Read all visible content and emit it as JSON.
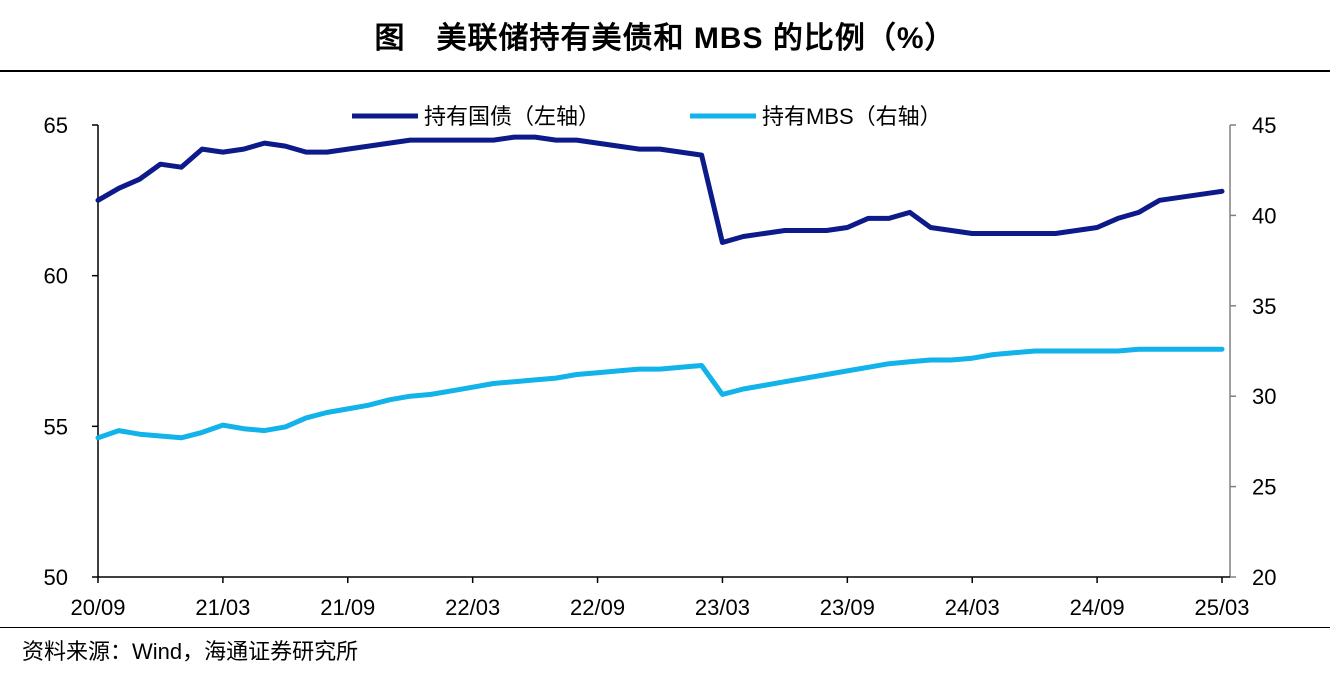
{
  "title": "图　美联储持有美债和 MBS 的比例（%）",
  "source": "资料来源：Wind，海通证券研究所",
  "colors": {
    "treasury": "#0d1a8a",
    "mbs": "#12b2ea",
    "axis": "#000000",
    "right_axis": "#808080"
  },
  "chart_data": {
    "type": "line",
    "title": "美联储持有美债和 MBS 的比例（%）",
    "x": [
      "20/09",
      "20/10",
      "20/11",
      "20/12",
      "21/01",
      "21/02",
      "21/03",
      "21/04",
      "21/05",
      "21/06",
      "21/07",
      "21/08",
      "21/09",
      "21/10",
      "21/11",
      "21/12",
      "22/01",
      "22/02",
      "22/03",
      "22/04",
      "22/05",
      "22/06",
      "22/07",
      "22/08",
      "22/09",
      "22/10",
      "22/11",
      "22/12",
      "23/01",
      "23/02",
      "23/03",
      "23/04",
      "23/05",
      "23/06",
      "23/07",
      "23/08",
      "23/09",
      "23/10",
      "23/11",
      "23/12",
      "24/01",
      "24/02",
      "24/03",
      "24/04",
      "24/05",
      "24/06",
      "24/07",
      "24/08",
      "24/09",
      "24/10",
      "24/11",
      "24/12",
      "25/01",
      "25/02",
      "25/03"
    ],
    "x_ticks": [
      "20/09",
      "21/03",
      "21/09",
      "22/03",
      "22/09",
      "23/03",
      "23/09",
      "24/03",
      "24/09",
      "25/03"
    ],
    "series": [
      {
        "name": "持有国债（左轴）",
        "axis": "left",
        "values": [
          62.5,
          62.9,
          63.2,
          63.7,
          63.6,
          64.2,
          64.1,
          64.2,
          64.4,
          64.3,
          64.1,
          64.1,
          64.2,
          64.3,
          64.4,
          64.5,
          64.5,
          64.5,
          64.5,
          64.5,
          64.6,
          64.6,
          64.5,
          64.5,
          64.4,
          64.3,
          64.2,
          64.2,
          64.1,
          64.0,
          61.1,
          61.3,
          61.4,
          61.5,
          61.5,
          61.5,
          61.6,
          61.9,
          61.9,
          62.1,
          61.6,
          61.5,
          61.4,
          61.4,
          61.4,
          61.4,
          61.4,
          61.5,
          61.6,
          61.9,
          62.1,
          62.5,
          62.6,
          62.7,
          62.8
        ]
      },
      {
        "name": "持有MBS（右轴）",
        "axis": "right",
        "values": [
          27.7,
          28.1,
          27.9,
          27.8,
          27.7,
          28.0,
          28.4,
          28.2,
          28.1,
          28.3,
          28.8,
          29.1,
          29.3,
          29.5,
          29.8,
          30.0,
          30.1,
          30.3,
          30.5,
          30.7,
          30.8,
          30.9,
          31.0,
          31.2,
          31.3,
          31.4,
          31.5,
          31.5,
          31.6,
          31.7,
          30.1,
          30.4,
          30.6,
          30.8,
          31.0,
          31.2,
          31.4,
          31.6,
          31.8,
          31.9,
          32.0,
          32.0,
          32.1,
          32.3,
          32.4,
          32.5,
          32.5,
          32.5,
          32.5,
          32.5,
          32.6,
          32.6,
          32.6,
          32.6,
          32.6
        ]
      }
    ],
    "y_left": {
      "min": 50,
      "max": 65,
      "ticks": [
        50,
        55,
        60,
        65
      ]
    },
    "y_right": {
      "min": 20,
      "max": 45,
      "ticks": [
        20,
        25,
        30,
        35,
        40,
        45
      ]
    },
    "legend": "top-center"
  }
}
